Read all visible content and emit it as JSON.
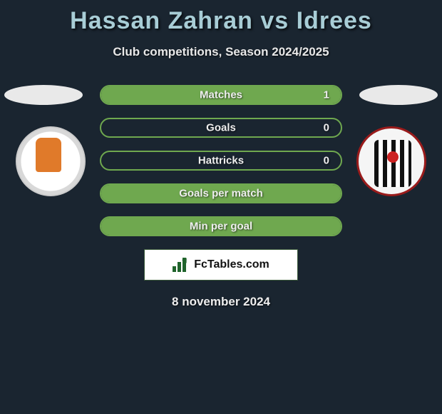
{
  "title": "Hassan Zahran vs Idrees",
  "subtitle": "Club competitions, Season 2024/2025",
  "date": "8 november 2024",
  "brand": "FcTables.com",
  "colors": {
    "background": "#1a2530",
    "title_color": "#a8cdd6",
    "bar_border": "#6fa84f",
    "bar_fill": "#6fa84f",
    "brand_green": "#20642c"
  },
  "left_club": {
    "name": "Ajman"
  },
  "right_club": {
    "name": "Al Jazira Club"
  },
  "stats": [
    {
      "label": "Matches",
      "value": "1",
      "fill_pct": 100
    },
    {
      "label": "Goals",
      "value": "0",
      "fill_pct": 0
    },
    {
      "label": "Hattricks",
      "value": "0",
      "fill_pct": 0
    },
    {
      "label": "Goals per match",
      "value": "",
      "fill_pct": 100
    },
    {
      "label": "Min per goal",
      "value": "",
      "fill_pct": 100
    }
  ]
}
